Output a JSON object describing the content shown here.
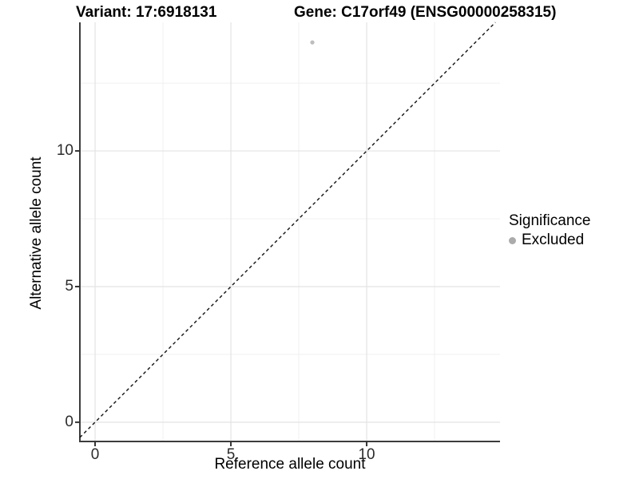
{
  "titles": {
    "variant": "Variant: 17:6918131",
    "gene": "Gene: C17orf49 (ENSG00000258315)"
  },
  "axes": {
    "x_label": "Reference allele count",
    "y_label": "Alternative allele count"
  },
  "legend": {
    "title": "Significance",
    "items": [
      {
        "label": "Excluded",
        "color": "#ababab"
      }
    ]
  },
  "colors": {
    "background": "#ffffff",
    "grid_major": "#e3e3e3",
    "grid_minor": "#f0f0f0",
    "axis_line": "#3c3c3c",
    "tick_mark": "#333333",
    "reference_line": "#111111",
    "point": "#bdbdbd"
  },
  "chart_data": {
    "type": "scatter",
    "title": "Variant: 17:6918131 / Gene: C17orf49 (ENSG00000258315)",
    "xlabel": "Reference allele count",
    "ylabel": "Alternative allele count",
    "x_ticks": [
      0,
      5,
      10
    ],
    "y_ticks": [
      0,
      5,
      10
    ],
    "xlim": [
      -0.56,
      14.91
    ],
    "ylim": [
      -0.71,
      14.74
    ],
    "grid": {
      "x_major": [
        0,
        5,
        10
      ],
      "x_minor": [
        2.5,
        7.5,
        12.5
      ],
      "y_major": [
        0,
        5,
        10
      ],
      "y_minor": [
        2.5,
        7.5,
        12.5
      ]
    },
    "series": [
      {
        "name": "Excluded",
        "color": "#bdbdbd",
        "points": [
          {
            "x": 8,
            "y": 14
          }
        ]
      }
    ],
    "reference_line": {
      "slope": 1,
      "intercept": 0,
      "style": "dashed"
    },
    "legend_position": "right",
    "legend_title": "Significance",
    "grid_on": true
  }
}
